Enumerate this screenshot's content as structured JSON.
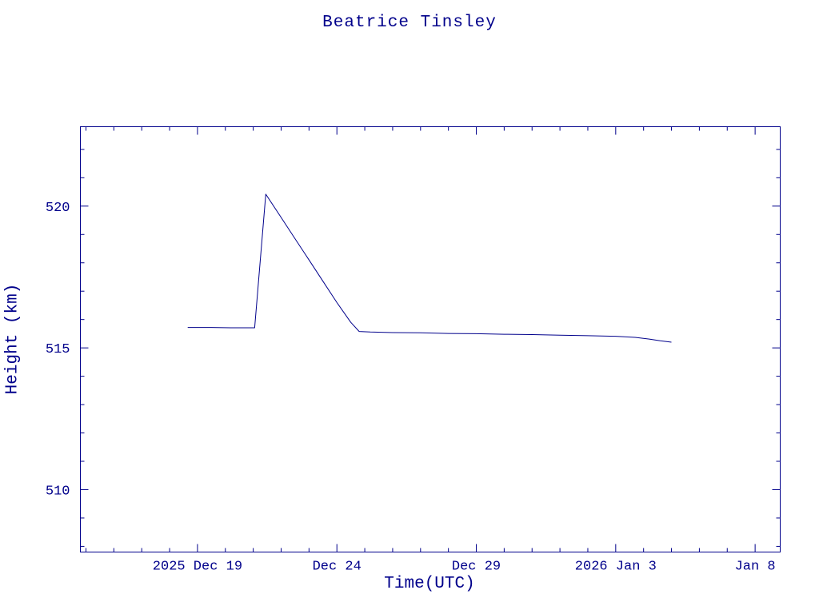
{
  "page": {
    "background": "#ffffff",
    "accent": "#00008b"
  },
  "chart_data": {
    "type": "line",
    "title": "Beatrice Tinsley",
    "xlabel": "Time(UTC)",
    "ylabel": "Height (km)",
    "x_encoding": "days since 2025 Dec 19 00:00 UTC",
    "xlim": [
      -4.2,
      20.9
    ],
    "ylim": [
      507.8,
      522.8
    ],
    "grid": false,
    "legend": null,
    "axis_color": "#00008b",
    "x_ticks": [
      {
        "value": 0,
        "label": "2025 Dec 19"
      },
      {
        "value": 5,
        "label": "Dec 24"
      },
      {
        "value": 10,
        "label": "Dec 29"
      },
      {
        "value": 15,
        "label": "2026 Jan 3"
      },
      {
        "value": 20,
        "label": "Jan 8"
      }
    ],
    "y_ticks": [
      {
        "value": 510,
        "label": "510"
      },
      {
        "value": 515,
        "label": "515"
      },
      {
        "value": 520,
        "label": "520"
      }
    ],
    "x_minor_step": 1,
    "y_minor_step": 1,
    "series": [
      {
        "name": "height",
        "color": "#00008b",
        "points": [
          [
            -0.35,
            515.72
          ],
          [
            0.5,
            515.72
          ],
          [
            1.2,
            515.71
          ],
          [
            2.05,
            515.71
          ],
          [
            2.45,
            520.42
          ],
          [
            3.0,
            519.6
          ],
          [
            3.5,
            518.85
          ],
          [
            4.0,
            518.1
          ],
          [
            4.5,
            517.35
          ],
          [
            5.0,
            516.6
          ],
          [
            5.5,
            515.9
          ],
          [
            5.8,
            515.58
          ],
          [
            6.2,
            515.56
          ],
          [
            7.0,
            515.54
          ],
          [
            8.0,
            515.53
          ],
          [
            9.0,
            515.51
          ],
          [
            10.0,
            515.5
          ],
          [
            11.0,
            515.48
          ],
          [
            12.0,
            515.47
          ],
          [
            13.0,
            515.45
          ],
          [
            14.0,
            515.43
          ],
          [
            15.0,
            515.41
          ],
          [
            15.7,
            515.37
          ],
          [
            16.2,
            515.31
          ],
          [
            16.6,
            515.25
          ],
          [
            17.0,
            515.2
          ]
        ]
      }
    ]
  }
}
